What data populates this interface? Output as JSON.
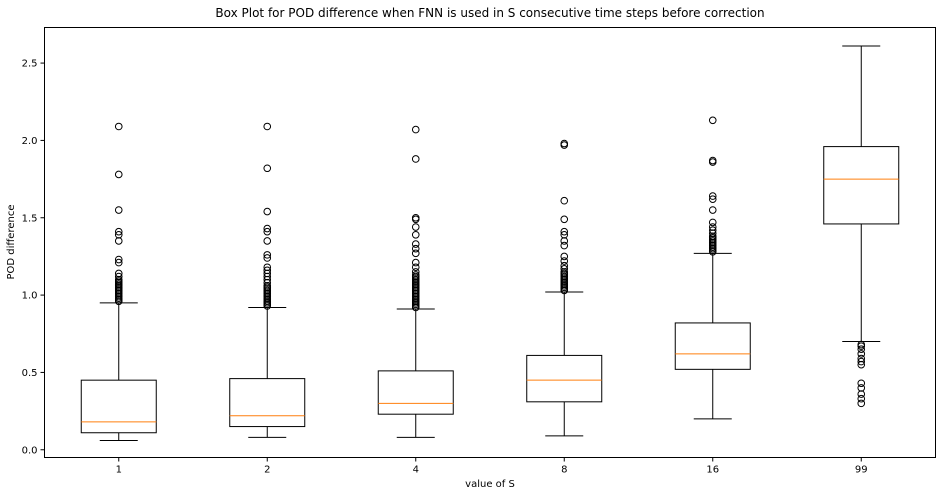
{
  "chart_data": {
    "type": "box",
    "title": "Box Plot for POD difference when FNN is used in S consecutive time steps before correction",
    "xlabel": "value of S",
    "ylabel": "POD difference",
    "categories": [
      "1",
      "2",
      "4",
      "8",
      "16",
      "99"
    ],
    "ylim": [
      -0.05,
      2.73
    ],
    "yticks": [
      0.0,
      0.5,
      1.0,
      1.5,
      2.0,
      2.5
    ],
    "ytick_labels": [
      "0.0",
      "0.5",
      "1.0",
      "1.5",
      "2.0",
      "2.5"
    ],
    "grid": false,
    "colors": {
      "box": "#000000",
      "median": "#ff7f0e",
      "outlier": "#000000",
      "background": "#ffffff"
    },
    "boxes": [
      {
        "category": "1",
        "whisker_low": 0.06,
        "q1": 0.11,
        "median": 0.18,
        "q3": 0.45,
        "whisker_high": 0.95,
        "outliers": [
          0.96,
          0.97,
          0.98,
          0.99,
          1.0,
          1.01,
          1.02,
          1.03,
          1.04,
          1.05,
          1.06,
          1.07,
          1.08,
          1.09,
          1.1,
          1.12,
          1.14,
          1.21,
          1.23,
          1.35,
          1.39,
          1.41,
          1.55,
          1.78,
          2.09
        ]
      },
      {
        "category": "2",
        "whisker_low": 0.08,
        "q1": 0.15,
        "median": 0.22,
        "q3": 0.46,
        "whisker_high": 0.92,
        "outliers": [
          0.93,
          0.94,
          0.95,
          0.96,
          0.97,
          0.98,
          0.99,
          1.0,
          1.01,
          1.02,
          1.03,
          1.04,
          1.05,
          1.06,
          1.08,
          1.1,
          1.12,
          1.14,
          1.16,
          1.18,
          1.24,
          1.26,
          1.35,
          1.41,
          1.43,
          1.54,
          1.82,
          2.09
        ]
      },
      {
        "category": "4",
        "whisker_low": 0.08,
        "q1": 0.23,
        "median": 0.3,
        "q3": 0.51,
        "whisker_high": 0.91,
        "outliers": [
          0.92,
          0.93,
          0.94,
          0.95,
          0.96,
          0.97,
          0.98,
          0.99,
          1.0,
          1.01,
          1.02,
          1.03,
          1.04,
          1.05,
          1.06,
          1.07,
          1.08,
          1.09,
          1.1,
          1.11,
          1.12,
          1.13,
          1.15,
          1.18,
          1.21,
          1.27,
          1.3,
          1.33,
          1.39,
          1.44,
          1.49,
          1.5,
          1.88,
          2.07
        ]
      },
      {
        "category": "8",
        "whisker_low": 0.09,
        "q1": 0.31,
        "median": 0.45,
        "q3": 0.61,
        "whisker_high": 1.02,
        "outliers": [
          1.03,
          1.04,
          1.05,
          1.06,
          1.07,
          1.08,
          1.09,
          1.1,
          1.11,
          1.12,
          1.13,
          1.14,
          1.15,
          1.17,
          1.19,
          1.22,
          1.25,
          1.32,
          1.35,
          1.39,
          1.41,
          1.49,
          1.61,
          1.97,
          1.98
        ]
      },
      {
        "category": "16",
        "whisker_low": 0.2,
        "q1": 0.52,
        "median": 0.62,
        "q3": 0.82,
        "whisker_high": 1.27,
        "outliers": [
          1.28,
          1.29,
          1.3,
          1.31,
          1.32,
          1.33,
          1.34,
          1.35,
          1.36,
          1.37,
          1.38,
          1.4,
          1.42,
          1.44,
          1.47,
          1.55,
          1.62,
          1.64,
          1.86,
          1.87,
          2.13
        ]
      },
      {
        "category": "99",
        "whisker_low": 0.7,
        "q1": 1.46,
        "median": 1.75,
        "q3": 1.96,
        "whisker_high": 2.61,
        "outliers": [
          0.3,
          0.33,
          0.36,
          0.4,
          0.43,
          0.55,
          0.57,
          0.59,
          0.62,
          0.65,
          0.67,
          0.68
        ]
      }
    ]
  }
}
